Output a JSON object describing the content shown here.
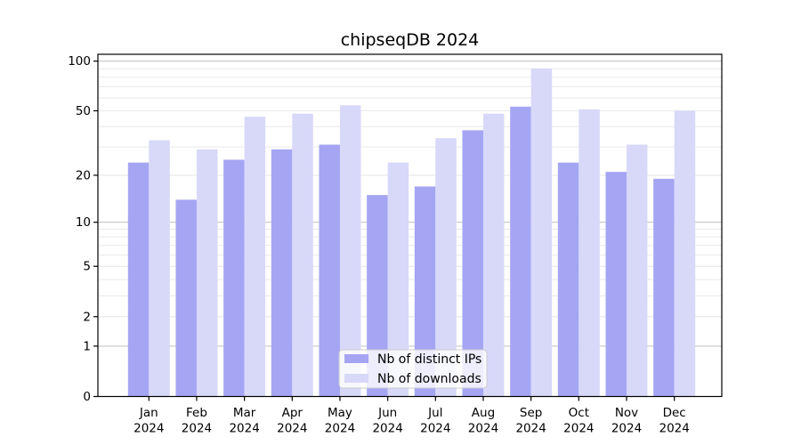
{
  "figure": {
    "title": "chipseqDB 2024"
  },
  "chart_data": {
    "type": "bar",
    "title": "chipseqDB 2024",
    "yscale": "log1p",
    "xlabel": "",
    "ylabel": "",
    "categories": [
      "Jan",
      "Feb",
      "Mar",
      "Apr",
      "May",
      "Jun",
      "Jul",
      "Aug",
      "Sep",
      "Oct",
      "Nov",
      "Dec"
    ],
    "category_year": "2024",
    "series": [
      {
        "name": "Nb of distinct IPs",
        "color": "#a5a5f3",
        "values": [
          24,
          14,
          25,
          29,
          31,
          15,
          17,
          38,
          53,
          24,
          21,
          19
        ]
      },
      {
        "name": "Nb of downloads",
        "color": "#d8d8f9",
        "values": [
          33,
          29,
          46,
          48,
          54,
          24,
          34,
          48,
          90,
          51,
          31,
          50
        ]
      }
    ],
    "yticks": [
      0,
      1,
      2,
      5,
      10,
      20,
      50,
      100
    ],
    "major_gridlines": [
      1,
      10,
      100
    ],
    "minor_gridlines": [
      2,
      3,
      4,
      5,
      6,
      7,
      8,
      9,
      20,
      30,
      40,
      50,
      60,
      70,
      80,
      90
    ],
    "ylim": [
      0,
      110
    ],
    "grid": true,
    "legend_position": "lower center"
  },
  "colors": {
    "background": "#ffffff",
    "axis": "#000000",
    "grid_major": "#c6c6ca",
    "grid_minor": "#e9e9ec",
    "legend_border": "#cccccc",
    "legend_background": "#ffffff"
  }
}
